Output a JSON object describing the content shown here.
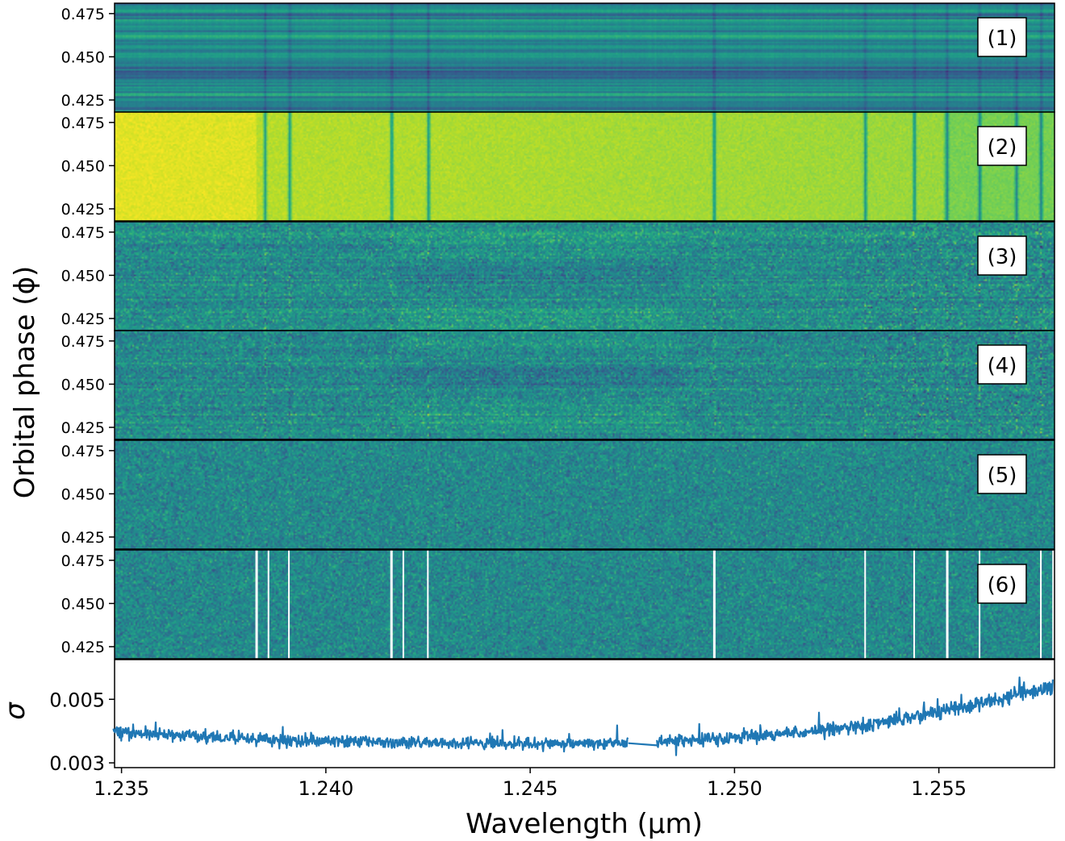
{
  "chart_data": [
    {
      "type": "heatmap",
      "panels": [
        {
          "label": "(1)",
          "description_colormap": "viridis"
        },
        {
          "label": "(2)",
          "description_colormap": "viridis"
        },
        {
          "label": "(3)",
          "description_colormap": "viridis"
        },
        {
          "label": "(4)",
          "description_colormap": "viridis"
        },
        {
          "label": "(5)",
          "description_colormap": "viridis"
        },
        {
          "label": "(6)",
          "description_colormap": "viridis"
        }
      ],
      "y_ticks": [
        "0.475",
        "0.450",
        "0.425"
      ],
      "y_tick_values": [
        0.475,
        0.45,
        0.425
      ],
      "ylim": [
        0.418,
        0.481
      ],
      "ylabel": "Orbital phase (ϕ)",
      "masked_columns_panel6": [
        1.2383,
        1.2386,
        1.2391,
        1.2416,
        1.2419,
        1.2425,
        1.2495,
        1.2532,
        1.2544,
        1.2552,
        1.256,
        1.2575,
        1.2578
      ],
      "strong_lines": [
        1.2385,
        1.2391,
        1.2416,
        1.2425,
        1.2495,
        1.2532,
        1.2544,
        1.2552,
        1.256,
        1.2569,
        1.2575
      ]
    },
    {
      "type": "line",
      "ylabel": "σ",
      "y_ticks": [
        "0.005",
        "0.003"
      ],
      "y_tick_values": [
        0.005,
        0.003
      ],
      "ylim": [
        0.00285,
        0.00625
      ],
      "series": [
        {
          "color": "#1f77b4",
          "segments": [
            {
              "x": [
                1.2348,
                1.2355,
                1.236,
                1.2365,
                1.237,
                1.2375,
                1.238,
                1.2385,
                1.239,
                1.2395,
                1.24,
                1.2405,
                1.241,
                1.2415,
                1.242,
                1.2425,
                1.243,
                1.2435,
                1.244,
                1.2445,
                1.245,
                1.2455,
                1.246,
                1.2465,
                1.247,
                1.2474
              ],
              "y": [
                0.00398,
                0.00393,
                0.0039,
                0.00385,
                0.00382,
                0.00378,
                0.00375,
                0.00372,
                0.0037,
                0.00369,
                0.00367,
                0.00366,
                0.00365,
                0.00364,
                0.00363,
                0.00362,
                0.00362,
                0.00361,
                0.0036,
                0.0036,
                0.0036,
                0.0036,
                0.0036,
                0.0036,
                0.00361,
                0.00362
              ]
            },
            {
              "x": [
                1.2474,
                1.2481
              ],
              "y": [
                0.00362,
                0.00355
              ]
            },
            {
              "x": [
                1.2481,
                1.2485,
                1.249,
                1.2495,
                1.25,
                1.2505,
                1.251,
                1.2515,
                1.252,
                1.2525,
                1.253,
                1.2535,
                1.254,
                1.2545,
                1.255,
                1.2555,
                1.256,
                1.2565,
                1.257,
                1.2575,
                1.2578
              ],
              "y": [
                0.00365,
                0.00368,
                0.00372,
                0.00376,
                0.0038,
                0.00385,
                0.0039,
                0.00395,
                0.004,
                0.00407,
                0.00415,
                0.00425,
                0.00435,
                0.00445,
                0.00458,
                0.00472,
                0.00487,
                0.00503,
                0.00518,
                0.00532,
                0.00542
              ]
            }
          ],
          "noise_amplitude": 0.00025
        }
      ]
    }
  ],
  "x_axis": {
    "xlabel": "Wavelength (μm)",
    "xlim": [
      1.23483,
      1.25783
    ],
    "ticks": [
      "1.235",
      "1.240",
      "1.245",
      "1.250",
      "1.255"
    ],
    "tick_values": [
      1.235,
      1.24,
      1.245,
      1.25,
      1.255
    ]
  }
}
